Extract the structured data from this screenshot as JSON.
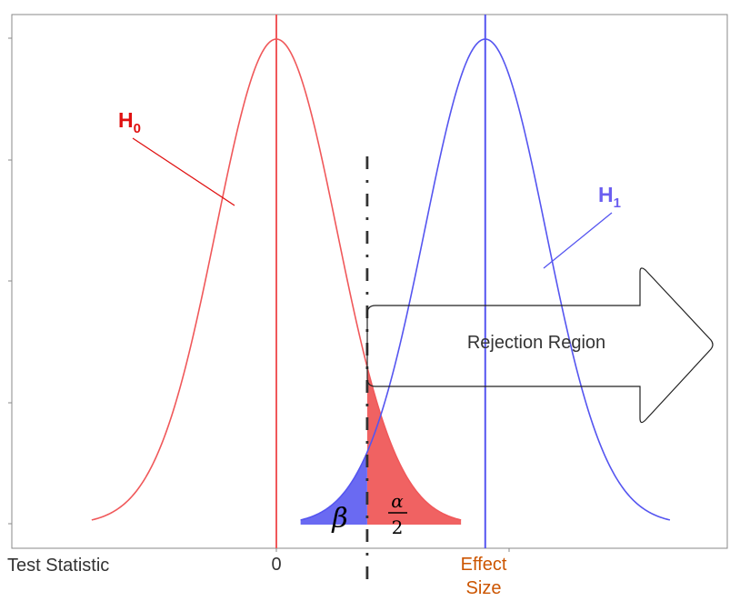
{
  "labels": {
    "h0": "H",
    "h0_sub": "0",
    "h1": "H",
    "h1_sub": "1",
    "rejection_region": "Rejection Region",
    "x_axis_label": "Test Statistic",
    "tick_zero": "0",
    "effect_size_line1": "Effect",
    "effect_size_line2": "Size",
    "beta": "β",
    "alpha_num": "α",
    "alpha_den": "2"
  },
  "colors": {
    "h0": "#f0585a",
    "h0_label": "#e01010",
    "h1": "#5555f0",
    "h1_label": "#6b5ef0",
    "alpha_fill": "#f06262",
    "beta_fill": "#6a6af2",
    "effect_size": "#cc5500",
    "axis_text": "#333333",
    "critical_line": "#333333"
  },
  "chart_data": {
    "type": "line",
    "distributions": [
      {
        "name": "H0",
        "mean": 0,
        "sd": 1
      },
      {
        "name": "H1",
        "mean": 3.45,
        "sd": 1
      }
    ],
    "critical_value": 1.5,
    "x_range": [
      -3.05,
      6.5
    ],
    "curve_span_sd": 3.05
  }
}
